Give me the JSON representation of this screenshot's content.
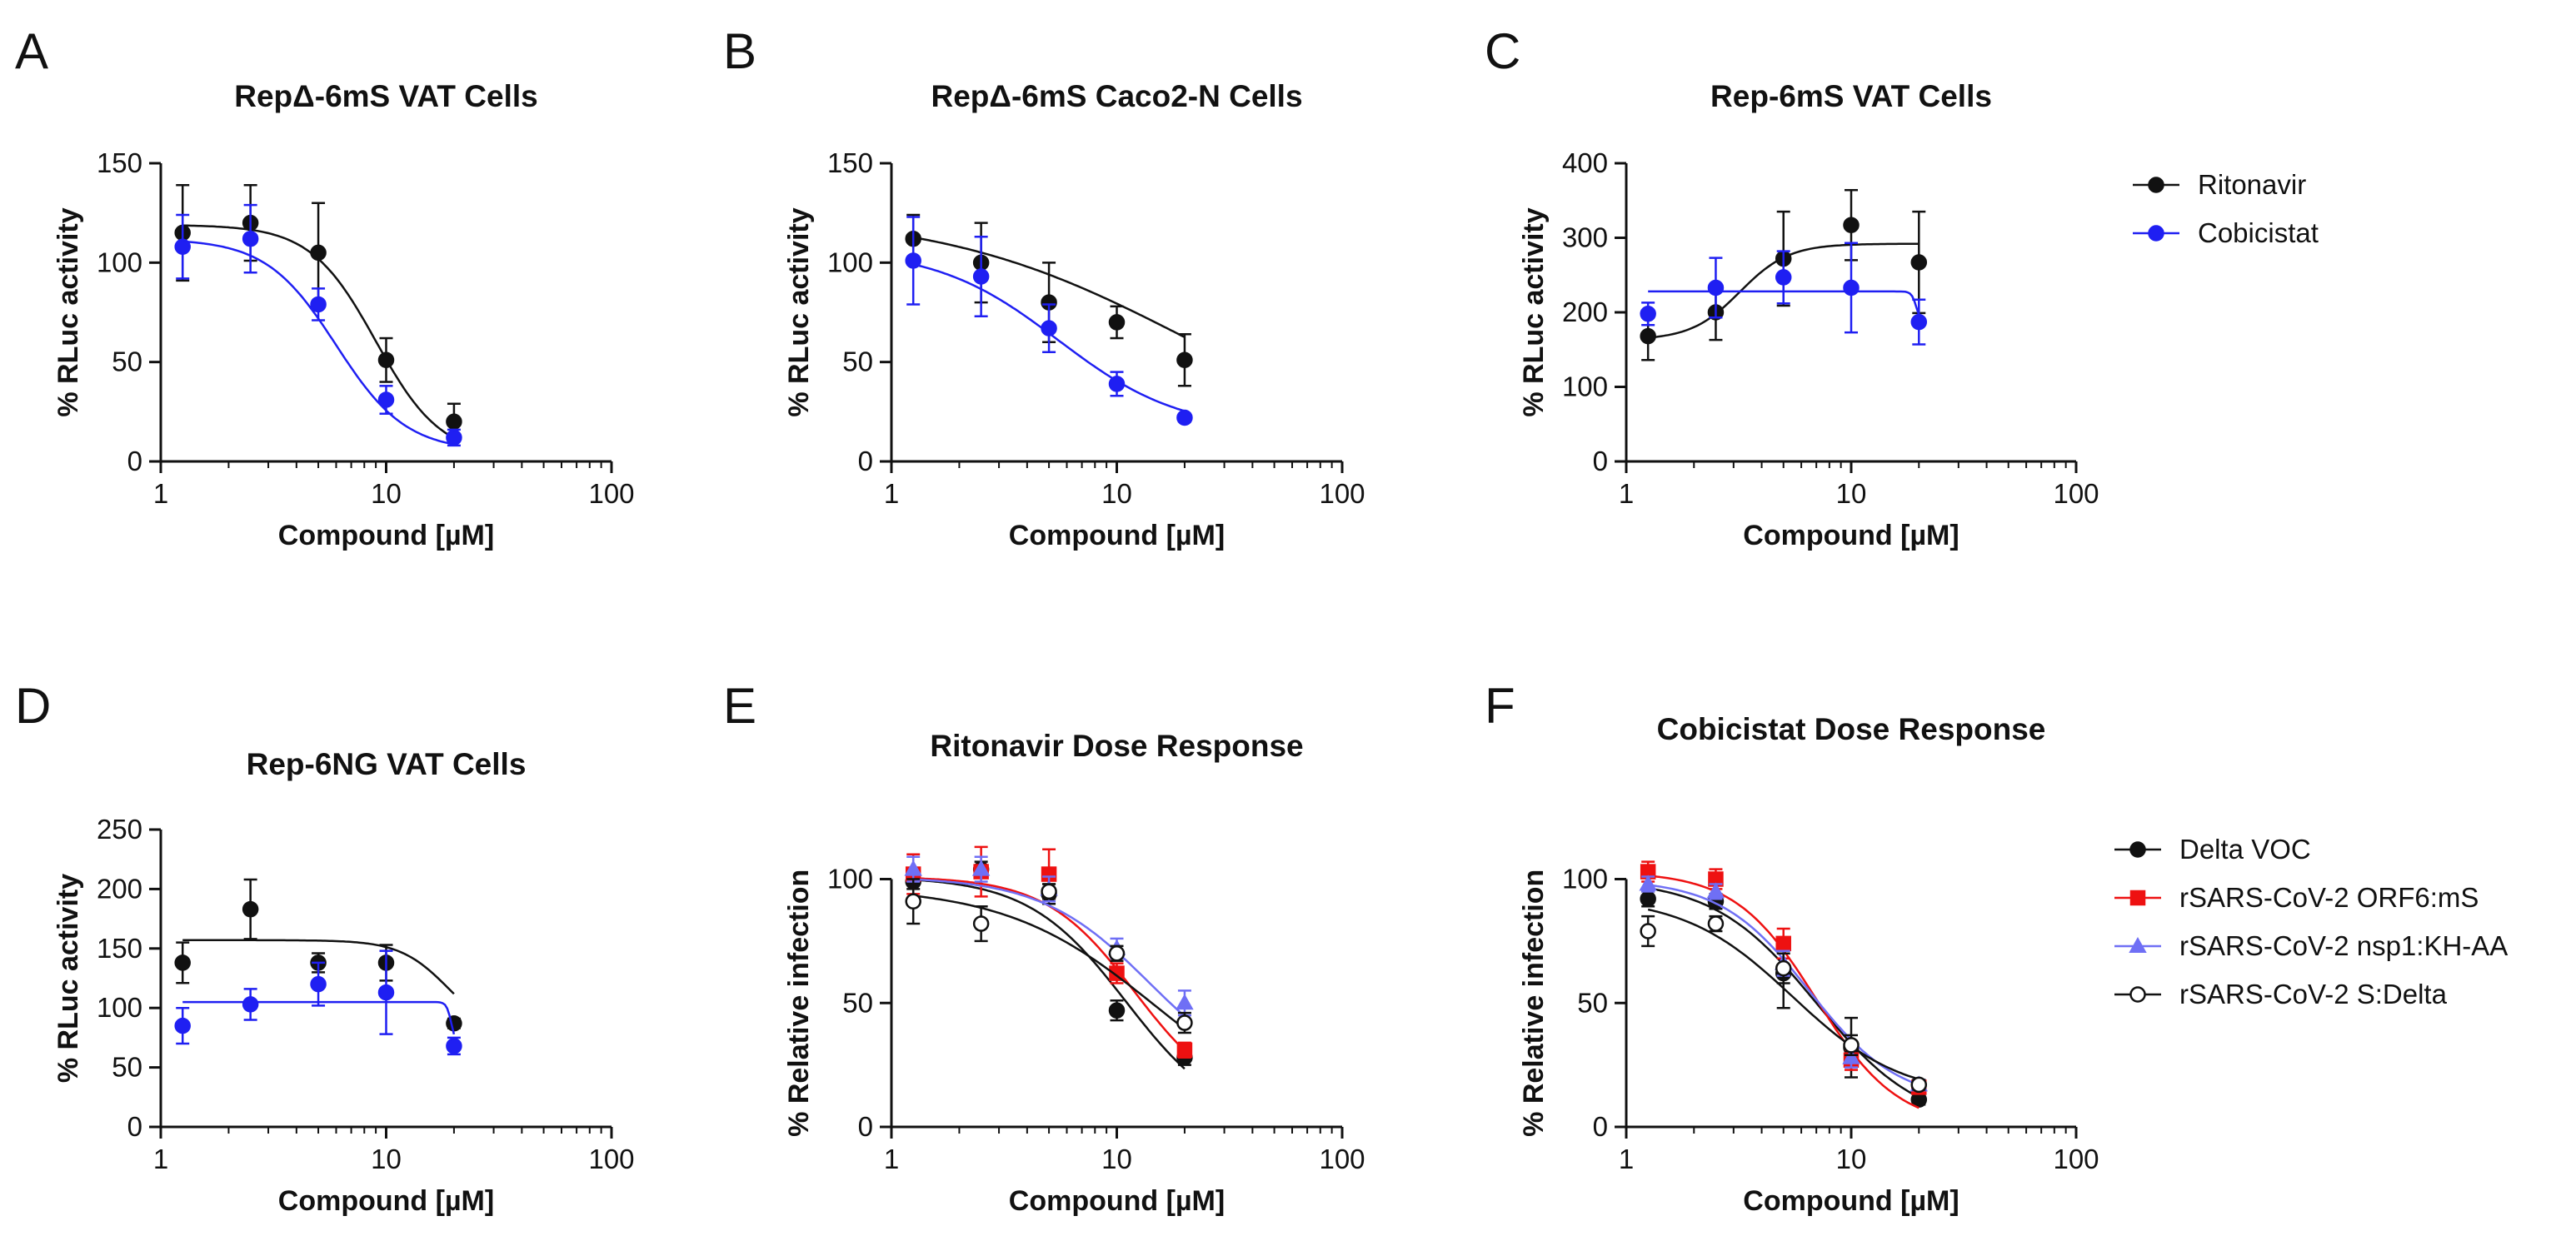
{
  "colors": {
    "black": "#111111",
    "blue": "#1f1ff2",
    "red": "#ee1111",
    "lightblue": "#6f6ff5"
  },
  "legends": {
    "top": [
      {
        "label": "Ritonavir",
        "color": "#111111",
        "marker": "circle",
        "fill": "solid"
      },
      {
        "label": "Cobicistat",
        "color": "#1f1ff2",
        "marker": "circle",
        "fill": "solid"
      }
    ],
    "bottom": [
      {
        "label": "Delta VOC",
        "color": "#111111",
        "marker": "circle",
        "fill": "solid"
      },
      {
        "label": "rSARS-CoV-2 ORF6:mS",
        "color": "#ee1111",
        "marker": "square",
        "fill": "solid"
      },
      {
        "label": "rSARS-CoV-2 nsp1:KH-AA",
        "color": "#6f6ff5",
        "marker": "triangle",
        "fill": "solid"
      },
      {
        "label": "rSARS-CoV-2 S:Delta",
        "color": "#111111",
        "marker": "circle",
        "fill": "open"
      }
    ]
  },
  "chart_data": [
    {
      "panel": "A",
      "type": "scatter",
      "title": "RepΔ-6mS VAT Cells",
      "xlabel": "Compound [µM]",
      "ylabel": "% RLuc activity",
      "xscale": "log",
      "xlim": [
        1,
        100
      ],
      "xticks": [
        1,
        10,
        100
      ],
      "ylim": [
        0,
        150
      ],
      "yticks": [
        0,
        50,
        100,
        150
      ],
      "series": [
        {
          "name": "Ritonavir",
          "color": "#111111",
          "marker": "circle",
          "fill": "solid",
          "x": [
            1.25,
            2.5,
            5,
            10,
            20
          ],
          "y": [
            115,
            120,
            105,
            51,
            20
          ],
          "err": [
            24,
            19,
            25,
            11,
            9
          ],
          "fit": {
            "kind": "hill",
            "top": 119,
            "bottom": 2,
            "ec50": 9.0,
            "hill": 3.0
          }
        },
        {
          "name": "Cobicistat",
          "color": "#1f1ff2",
          "marker": "circle",
          "fill": "solid",
          "x": [
            1.25,
            2.5,
            5,
            10,
            20
          ],
          "y": [
            108,
            112,
            79,
            31,
            12
          ],
          "err": [
            16,
            17,
            8,
            7,
            4
          ],
          "fit": {
            "kind": "hill",
            "top": 112,
            "bottom": 5,
            "ec50": 6.0,
            "hill": 2.8
          }
        }
      ]
    },
    {
      "panel": "B",
      "type": "scatter",
      "title": "RepΔ-6mS Caco2-N Cells",
      "xlabel": "Compound [µM]",
      "ylabel": "% RLuc activity",
      "xscale": "log",
      "xlim": [
        1,
        100
      ],
      "xticks": [
        1,
        10,
        100
      ],
      "ylim": [
        0,
        150
      ],
      "yticks": [
        0,
        50,
        100,
        150
      ],
      "series": [
        {
          "name": "Ritonavir",
          "color": "#111111",
          "marker": "circle",
          "fill": "solid",
          "x": [
            1.25,
            2.5,
            5,
            10,
            20
          ],
          "y": [
            112,
            100,
            80,
            70,
            51
          ],
          "err": [
            12,
            20,
            20,
            8,
            13
          ],
          "fit": {
            "kind": "hill",
            "top": 125,
            "bottom": 0,
            "ec50": 20,
            "hill": 0.8
          }
        },
        {
          "name": "Cobicistat",
          "color": "#1f1ff2",
          "marker": "circle",
          "fill": "solid",
          "x": [
            1.25,
            2.5,
            5,
            10,
            20
          ],
          "y": [
            101,
            93,
            67,
            39,
            22
          ],
          "err": [
            22,
            20,
            12,
            6,
            2
          ],
          "fit": {
            "kind": "hill",
            "top": 107,
            "bottom": 15,
            "ec50": 5.5,
            "hill": 1.6
          }
        }
      ]
    },
    {
      "panel": "C",
      "type": "scatter",
      "title": "Rep-6mS VAT Cells",
      "xlabel": "Compound [µM]",
      "ylabel": "% RLuc activity",
      "xscale": "log",
      "xlim": [
        1,
        100
      ],
      "xticks": [
        1,
        10,
        100
      ],
      "ylim": [
        0,
        400
      ],
      "yticks": [
        0,
        100,
        200,
        300,
        400
      ],
      "series": [
        {
          "name": "Ritonavir",
          "color": "#111111",
          "marker": "circle",
          "fill": "solid",
          "x": [
            1.25,
            2.5,
            5,
            10,
            20
          ],
          "y": [
            168,
            200,
            272,
            317,
            267
          ],
          "err": [
            32,
            37,
            63,
            47,
            68
          ],
          "fit": {
            "kind": "hill",
            "top": 163,
            "bottom": 292,
            "ec50": 3.2,
            "hill": 4
          }
        },
        {
          "name": "Cobicistat",
          "color": "#1f1ff2",
          "marker": "circle",
          "fill": "solid",
          "x": [
            1.25,
            2.5,
            5,
            10,
            20
          ],
          "y": [
            198,
            233,
            247,
            233,
            187
          ],
          "err": [
            15,
            40,
            35,
            60,
            30
          ],
          "fit": {
            "kind": "hill",
            "top": 228,
            "bottom": 185,
            "ec50": 19.5,
            "hill": 40
          }
        }
      ]
    },
    {
      "panel": "D",
      "type": "scatter",
      "title": "Rep-6NG VAT Cells",
      "xlabel": "Compound [µM]",
      "ylabel": "% RLuc activity",
      "xscale": "log",
      "xlim": [
        1,
        100
      ],
      "xticks": [
        1,
        10,
        100
      ],
      "ylim": [
        0,
        250
      ],
      "yticks": [
        0,
        50,
        100,
        150,
        200,
        250
      ],
      "series": [
        {
          "name": "Ritonavir",
          "color": "#111111",
          "marker": "circle",
          "fill": "solid",
          "x": [
            1.25,
            2.5,
            5,
            10,
            20
          ],
          "y": [
            138,
            183,
            138,
            138,
            87
          ],
          "err": [
            17,
            25,
            8,
            15,
            4
          ],
          "fit": {
            "kind": "hill",
            "top": 157,
            "bottom": 75,
            "ec50": 19,
            "hill": 4
          }
        },
        {
          "name": "Cobicistat",
          "color": "#1f1ff2",
          "marker": "circle",
          "fill": "solid",
          "x": [
            1.25,
            2.5,
            5,
            10,
            20
          ],
          "y": [
            85,
            103,
            120,
            113,
            68
          ],
          "err": [
            15,
            13,
            18,
            35,
            7
          ],
          "fit": {
            "kind": "hill",
            "top": 105,
            "bottom": 68,
            "ec50": 19.5,
            "hill": 40
          }
        }
      ]
    },
    {
      "panel": "E",
      "type": "scatter",
      "title": "Ritonavir Dose Response",
      "xlabel": "Compound [µM]",
      "ylabel": "% Relative infection",
      "xscale": "log",
      "xlim": [
        1,
        100
      ],
      "xticks": [
        1,
        10,
        100
      ],
      "ylim": [
        0,
        120
      ],
      "yticks": [
        0,
        50,
        100
      ],
      "series": [
        {
          "name": "Delta VOC",
          "color": "#111111",
          "marker": "circle",
          "fill": "solid",
          "x": [
            1.25,
            2.5,
            5,
            10,
            20
          ],
          "y": [
            99,
            104,
            94,
            47,
            28
          ],
          "err": [
            3,
            3,
            4,
            4,
            3
          ],
          "fit": {
            "kind": "hill",
            "top": 101,
            "bottom": 0,
            "ec50": 11,
            "hill": 2.0
          }
        },
        {
          "name": "rSARS-CoV-2 ORF6:mS",
          "color": "#ee1111",
          "marker": "square",
          "fill": "solid",
          "x": [
            1.25,
            2.5,
            5,
            10,
            20
          ],
          "y": [
            102,
            103,
            102,
            62,
            31
          ],
          "err": [
            8,
            10,
            10,
            4,
            3
          ],
          "fit": {
            "kind": "hill",
            "top": 101,
            "bottom": 8,
            "ec50": 12,
            "hill": 2.2
          }
        },
        {
          "name": "rSARS-CoV-2 nsp1:KH-AA",
          "color": "#6f6ff5",
          "marker": "triangle",
          "fill": "solid",
          "x": [
            1.25,
            2.5,
            5,
            10,
            20
          ],
          "y": [
            104,
            104,
            96,
            72,
            50
          ],
          "err": [
            5,
            5,
            5,
            4,
            5
          ],
          "fit": {
            "kind": "hill",
            "top": 101,
            "bottom": 15,
            "ec50": 14,
            "hill": 1.8
          }
        },
        {
          "name": "rSARS-CoV-2 S:Delta",
          "color": "#111111",
          "marker": "circle",
          "fill": "open",
          "x": [
            1.25,
            2.5,
            5,
            10,
            20
          ],
          "y": [
            91,
            82,
            95,
            70,
            42
          ],
          "err": [
            9,
            7,
            3,
            3,
            4
          ],
          "fit": {
            "kind": "hill",
            "top": 97,
            "bottom": 0,
            "ec50": 15,
            "hill": 1.3
          }
        }
      ]
    },
    {
      "panel": "F",
      "type": "scatter",
      "title": "Cobicistat Dose Response",
      "xlabel": "Compound [µM]",
      "ylabel": "% Relative infection",
      "xscale": "log",
      "xlim": [
        1,
        100
      ],
      "xticks": [
        1,
        10,
        100
      ],
      "ylim": [
        0,
        120
      ],
      "yticks": [
        0,
        50,
        100
      ],
      "series": [
        {
          "name": "Delta VOC",
          "color": "#111111",
          "marker": "circle",
          "fill": "solid",
          "x": [
            1.25,
            2.5,
            5,
            10,
            20
          ],
          "y": [
            92,
            91,
            62,
            32,
            11
          ],
          "err": [
            3,
            3,
            14,
            12,
            2
          ],
          "fit": {
            "kind": "hill",
            "top": 100,
            "bottom": 0,
            "ec50": 7,
            "hill": 1.9
          }
        },
        {
          "name": "rSARS-CoV-2 ORF6:mS",
          "color": "#ee1111",
          "marker": "square",
          "fill": "solid",
          "x": [
            1.25,
            2.5,
            5,
            10,
            20
          ],
          "y": [
            103,
            100,
            74,
            27,
            16
          ],
          "err": [
            4,
            4,
            6,
            4,
            2
          ],
          "fit": {
            "kind": "hill",
            "top": 103,
            "bottom": 0,
            "ec50": 7,
            "hill": 2.4
          }
        },
        {
          "name": "rSARS-CoV-2 nsp1:KH-AA",
          "color": "#6f6ff5",
          "marker": "triangle",
          "fill": "solid",
          "x": [
            1.25,
            2.5,
            5,
            10,
            20
          ],
          "y": [
            98,
            95,
            66,
            28,
            17
          ],
          "err": [
            3,
            3,
            5,
            4,
            2
          ],
          "fit": {
            "kind": "hill",
            "top": 100,
            "bottom": 10,
            "ec50": 6.5,
            "hill": 2.2
          }
        },
        {
          "name": "rSARS-CoV-2 S:Delta",
          "color": "#111111",
          "marker": "circle",
          "fill": "open",
          "x": [
            1.25,
            2.5,
            5,
            10,
            20
          ],
          "y": [
            79,
            82,
            64,
            33,
            17
          ],
          "err": [
            6,
            3,
            6,
            4,
            2
          ],
          "fit": {
            "kind": "hill",
            "top": 93,
            "bottom": 12,
            "ec50": 5.5,
            "hill": 1.8
          }
        }
      ]
    }
  ]
}
